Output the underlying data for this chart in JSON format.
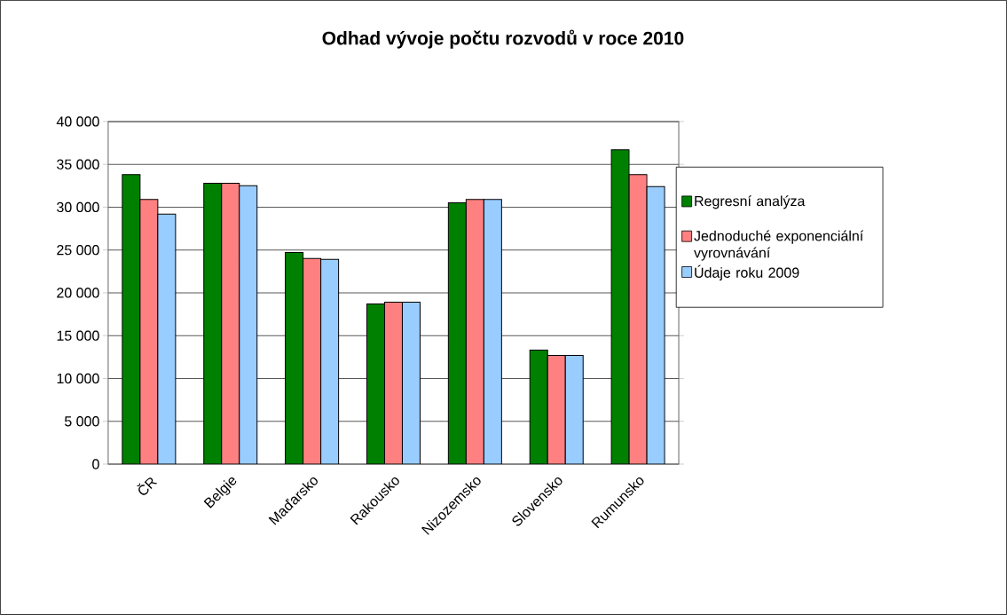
{
  "chart_data": {
    "type": "bar",
    "title": "Odhad vývoje počtu rozvodů v roce 2010",
    "categories": [
      "ČR",
      "Belgie",
      "Maďarsko",
      "Rakousko",
      "Nizozemsko",
      "Slovensko",
      "Rumunsko"
    ],
    "series": [
      {
        "name": "Regresní analýza",
        "color": "#008000",
        "values": [
          33800,
          32800,
          24700,
          18700,
          30500,
          13300,
          36700
        ]
      },
      {
        "name": "Jednoduché exponenciální vyrovnávání",
        "color": "#ff8080",
        "values": [
          30900,
          32800,
          24000,
          18900,
          30900,
          12700,
          33800
        ]
      },
      {
        "name": "Údaje roku 2009",
        "color": "#99ccff",
        "values": [
          29200,
          32500,
          23900,
          18900,
          30900,
          12700,
          32400
        ]
      }
    ],
    "ylim": [
      0,
      40000
    ],
    "yticks": [
      {
        "value": 0,
        "label": "0"
      },
      {
        "value": 5000,
        "label": "5 000"
      },
      {
        "value": 10000,
        "label": "10 000"
      },
      {
        "value": 15000,
        "label": "15 000"
      },
      {
        "value": 20000,
        "label": "20 000"
      },
      {
        "value": 25000,
        "label": "25 000"
      },
      {
        "value": 30000,
        "label": "30 000"
      },
      {
        "value": 35000,
        "label": "35 000"
      },
      {
        "value": 40000,
        "label": "40 000"
      }
    ],
    "grid": "y",
    "legend": "right"
  }
}
